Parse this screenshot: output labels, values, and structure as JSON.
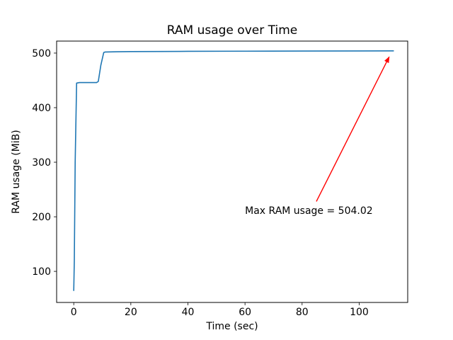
{
  "chart_data": {
    "type": "line",
    "title": "RAM usage over Time",
    "xlabel": "Time (sec)",
    "ylabel": "RAM usage (MiB)",
    "xlim": [
      -6,
      117
    ],
    "ylim": [
      43,
      522
    ],
    "xticks": [
      0,
      20,
      40,
      60,
      80,
      100
    ],
    "yticks": [
      100,
      200,
      300,
      400,
      500
    ],
    "grid": false,
    "legend": null,
    "line_color": "#1f77b4",
    "series": [
      {
        "name": "RAM usage",
        "x": [
          0,
          0.2,
          0.5,
          1,
          2,
          8,
          8.6,
          9.5,
          10.5,
          11,
          15,
          20,
          30,
          40,
          60,
          80,
          100,
          112
        ],
        "y": [
          65,
          120,
          300,
          445,
          446,
          446,
          448,
          478,
          501,
          502,
          502.5,
          502.8,
          503,
          503.2,
          503.5,
          503.7,
          503.9,
          504.02
        ]
      }
    ],
    "annotation": {
      "text": "Max RAM usage = 504.02",
      "color": "#ff0000",
      "max_value": "504.02",
      "text_xy": [
        60,
        205
      ],
      "arrow_start": [
        85,
        228
      ],
      "arrow_end": [
        110.5,
        493
      ]
    }
  }
}
